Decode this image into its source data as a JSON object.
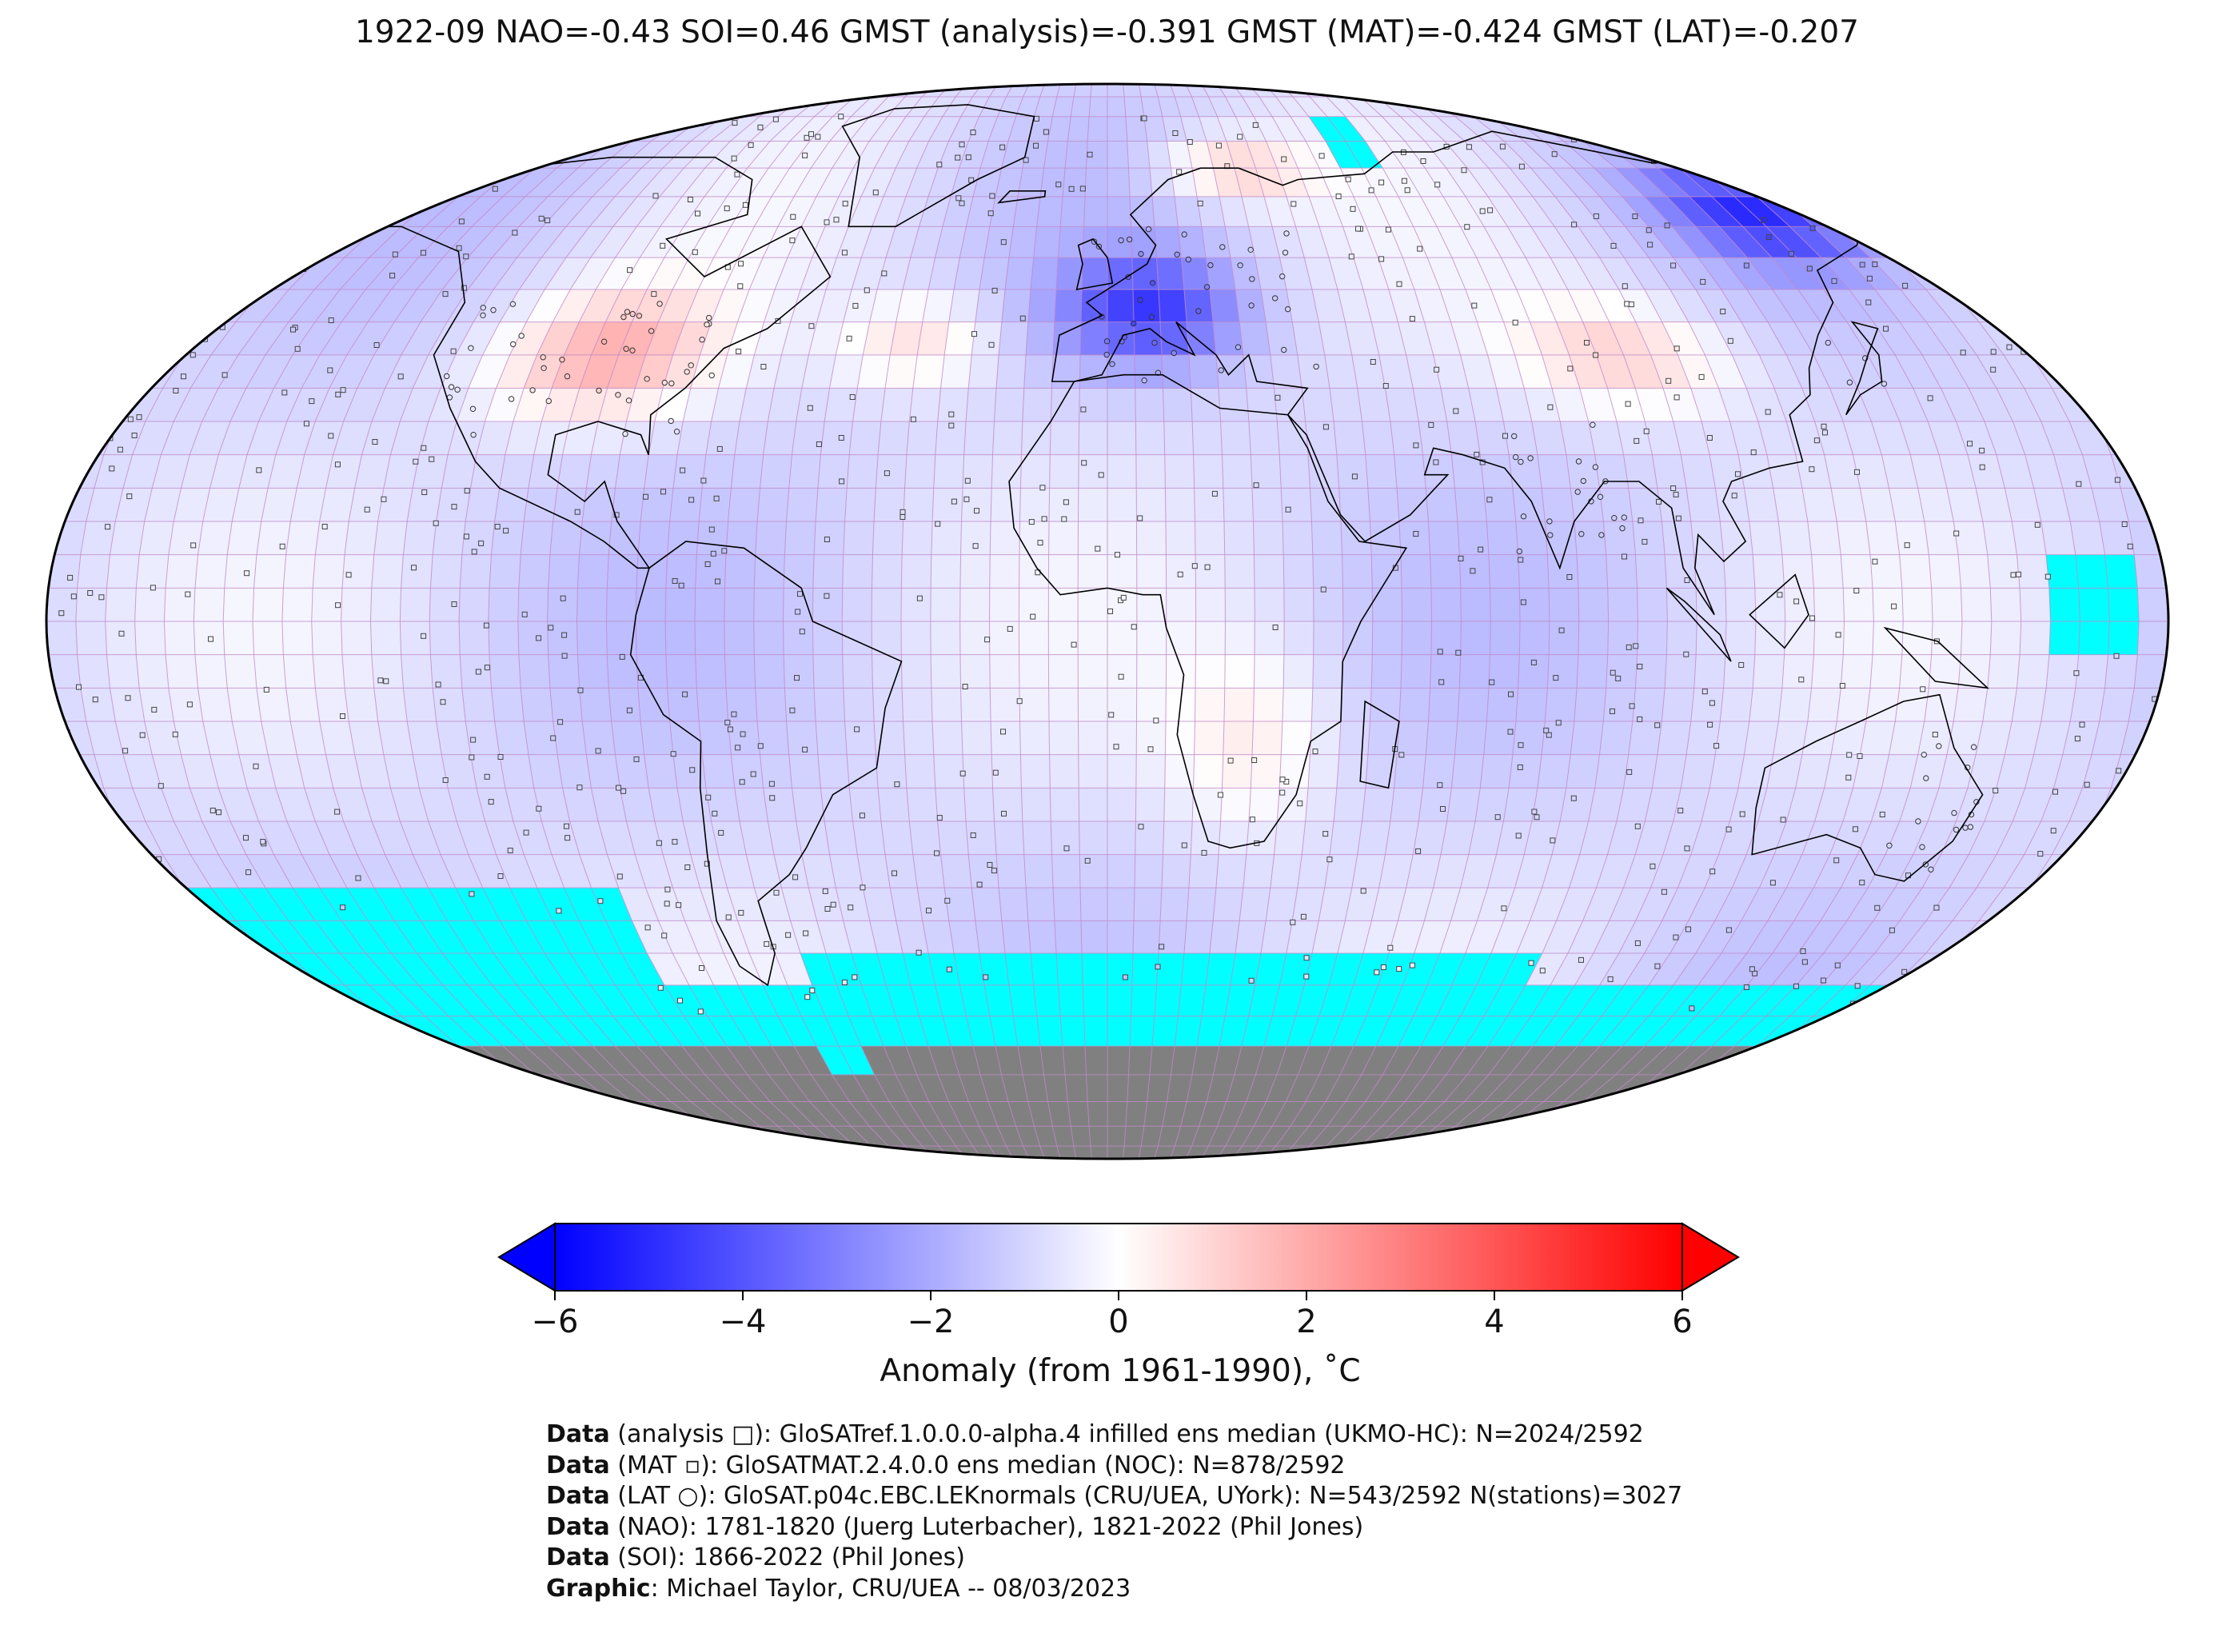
{
  "title": "1922-09 NAO=-0.43 SOI=0.46 GMST (analysis)=-0.391 GMST (MAT)=-0.424 GMST (LAT)=-0.207",
  "map": {
    "projection": "Robinson",
    "grid_resolution_deg": 5,
    "colors": {
      "min": "#0000ff",
      "mid": "#ffffff",
      "max": "#ff0000",
      "missing": "#00ffff",
      "land_mask": "#808080",
      "gridlines": "#c08ac8",
      "coastlines": "#000000"
    },
    "anomaly_regions": [
      {
        "region": "central/eastern United States",
        "anomaly": 2.5
      },
      {
        "region": "western Europe",
        "anomaly": -3.0
      },
      {
        "region": "eastern Siberia",
        "anomaly": -4.0
      },
      {
        "region": "northern Scandinavia / Barents",
        "anomaly": 2.0
      },
      {
        "region": "central Asia",
        "anomaly": 2.0
      },
      {
        "region": "North Atlantic",
        "anomaly": 1.5
      },
      {
        "region": "Southern Ocean (Pacific sector)",
        "anomaly": null
      }
    ]
  },
  "colorbar": {
    "min": -6,
    "max": 6,
    "ticks": [
      "−6",
      "−4",
      "−2",
      "0",
      "2",
      "4",
      "6"
    ],
    "tick_values": [
      -6,
      -4,
      -2,
      0,
      2,
      4,
      6
    ],
    "label": "Anomaly (from 1961-1990), ˚C",
    "extend": "both"
  },
  "credits": [
    {
      "bold": "Data",
      "text": " (analysis □): GloSATref.1.0.0.0-alpha.4 infilled ens median (UKMO-HC): N=2024/2592"
    },
    {
      "bold": "Data",
      "text": " (MAT ▫): GloSATMAT.2.4.0.0 ens median (NOC): N=878/2592"
    },
    {
      "bold": "Data",
      "text": " (LAT ○): GloSAT.p04c.EBC.LEKnormals (CRU/UEA, UYork): N=543/2592 N(stations)=3027"
    },
    {
      "bold": "Data",
      "text": " (NAO): 1781-1820 (Juerg Luterbacher), 1821-2022 (Phil Jones)"
    },
    {
      "bold": "Data",
      "text": " (SOI): 1866-2022 (Phil Jones)"
    },
    {
      "bold": "Graphic",
      "text": ": Michael Taylor, CRU/UEA -- 08/03/2023"
    }
  ]
}
